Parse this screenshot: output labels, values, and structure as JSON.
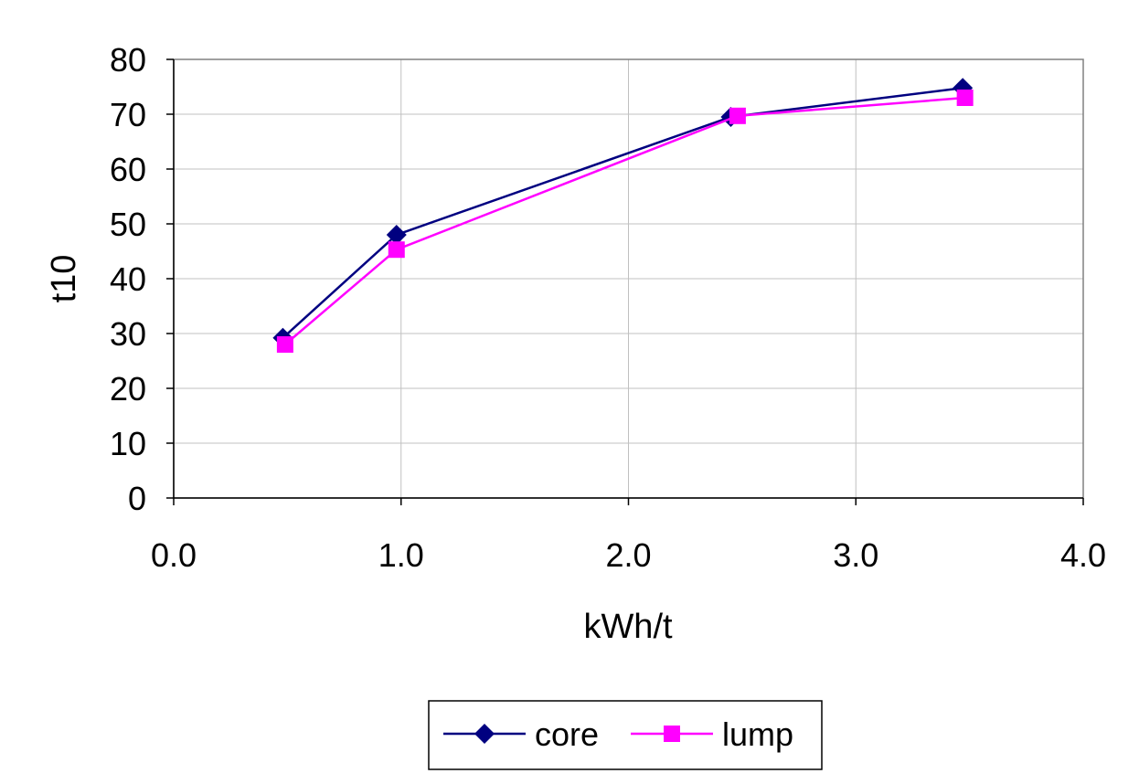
{
  "chart_data": {
    "type": "line",
    "title": "",
    "xlabel": "kWh/t",
    "ylabel": "t10",
    "xlim": [
      0,
      4
    ],
    "ylim": [
      0,
      80
    ],
    "xticks": [
      "0.0",
      "1.0",
      "2.0",
      "3.0",
      "4.0"
    ],
    "yticks": [
      "0",
      "10",
      "20",
      "30",
      "40",
      "50",
      "60",
      "70",
      "80"
    ],
    "grid": true,
    "legend_position": "bottom",
    "series": [
      {
        "name": "core",
        "color": "#000080",
        "marker": "diamond",
        "x": [
          0.48,
          0.98,
          2.45,
          3.47
        ],
        "y": [
          29.2,
          48.0,
          69.5,
          74.8
        ]
      },
      {
        "name": "lump",
        "color": "#FF00FF",
        "marker": "square",
        "x": [
          0.49,
          0.98,
          2.48,
          3.48
        ],
        "y": [
          28.0,
          45.3,
          69.7,
          73.0
        ]
      }
    ]
  }
}
